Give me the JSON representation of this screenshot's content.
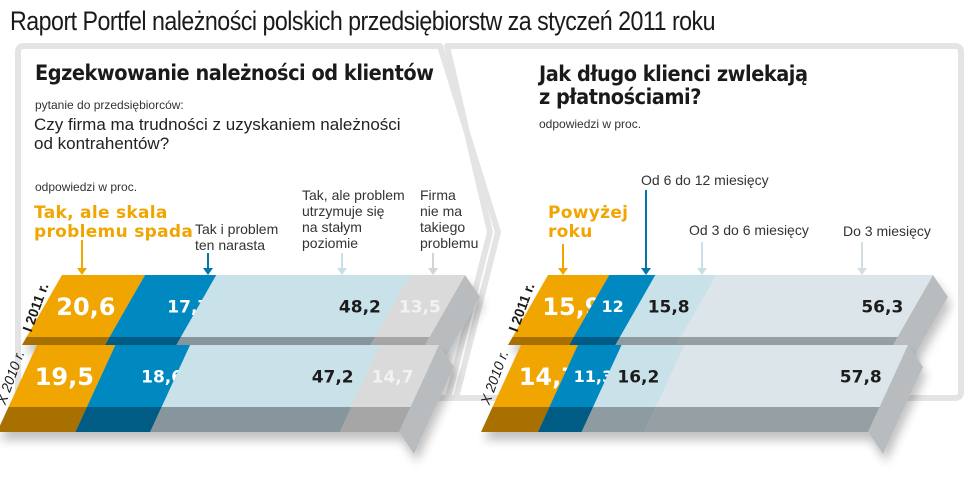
{
  "title": "Raport Portfel należności polskich przedsiębiorstw za styczeń 2011 roku",
  "left_panel": {
    "title": "Egzekwowanie należności od klientów",
    "question_intro": "pytanie do przedsiębiorców:",
    "question_line1": "Czy firma ma trudności z uzyskaniem należności",
    "question_line2": "od kontrahentów?",
    "unit": "odpowiedzi w proc.",
    "categories": [
      {
        "lines": [
          "Tak, ale skala",
          "problemu spada"
        ],
        "color": "#f0a500"
      },
      {
        "lines": [
          "Tak i problem",
          "ten narasta"
        ],
        "color": "#0088c0"
      },
      {
        "lines": [
          "Tak, ale problem",
          "utrzymuje się",
          "na stałym",
          "poziomie"
        ],
        "color": "#c8e0e8"
      },
      {
        "lines": [
          "Firma",
          "nie ma",
          "takiego",
          "problemu"
        ],
        "color": "#d8d8d8"
      }
    ],
    "rows": [
      {
        "label": "I 2011 r.",
        "values": [
          "20,6",
          "17,7",
          "48,2",
          "13,5"
        ]
      },
      {
        "label": "X 2010 r.",
        "values": [
          "19,5",
          "18,6",
          "47,2",
          "14,7"
        ]
      }
    ]
  },
  "right_panel": {
    "title_line1": "Jak długo klienci zwlekają",
    "title_line2": "z płatnościami?",
    "unit": "odpowiedzi w proc.",
    "categories": [
      {
        "lines": [
          "Powyżej",
          "roku"
        ],
        "color": "#f0a500"
      },
      {
        "lines": [
          "Od 6 do 12 miesięcy"
        ],
        "color": "#0088c0"
      },
      {
        "lines": [
          "Od 3 do 6 miesięcy"
        ],
        "color": "#c8e0e8"
      },
      {
        "lines": [
          "Do 3 miesięcy"
        ],
        "color": "#dde6ea"
      }
    ],
    "rows": [
      {
        "label": "I 2011 r.",
        "values": [
          "15,9",
          "12",
          "15,8",
          "56,3"
        ]
      },
      {
        "label": "X 2010 r.",
        "values": [
          "14,7",
          "11,3",
          "16,2",
          "57,8"
        ]
      }
    ]
  },
  "colors": {
    "orange": "#f0a500",
    "blue": "#0088c0",
    "light_blue": "#c8e0e8",
    "light_gray": "#d8d8d8",
    "pale": "#dde6ea",
    "frame": "#e6e6e6"
  },
  "chart_data": [
    {
      "type": "bar",
      "orientation": "horizontal-stacked",
      "title": "Egzekwowanie należności od klientów",
      "subtitle": "Czy firma ma trudności z uzyskaniem należności od kontrahentów? (odpowiedzi w proc.)",
      "categories": [
        "I 2011 r.",
        "X 2010 r."
      ],
      "series": [
        {
          "name": "Tak, ale skala problemu spada",
          "values": [
            20.6,
            19.5
          ]
        },
        {
          "name": "Tak i problem ten narasta",
          "values": [
            17.7,
            18.6
          ]
        },
        {
          "name": "Tak, ale problem utrzymuje się na stałym poziomie",
          "values": [
            48.2,
            47.2
          ]
        },
        {
          "name": "Firma nie ma takiego problemu",
          "values": [
            13.5,
            14.7
          ]
        }
      ],
      "xlabel": "",
      "ylabel": "",
      "grid": false,
      "legend_position": "top"
    },
    {
      "type": "bar",
      "orientation": "horizontal-stacked",
      "title": "Jak długo klienci zwlekają z płatnościami?",
      "subtitle": "odpowiedzi w proc.",
      "categories": [
        "I 2011 r.",
        "X 2010 r."
      ],
      "series": [
        {
          "name": "Powyżej roku",
          "values": [
            15.9,
            14.7
          ]
        },
        {
          "name": "Od 6 do 12 miesięcy",
          "values": [
            12,
            11.3
          ]
        },
        {
          "name": "Od 3 do 6 miesięcy",
          "values": [
            15.8,
            16.2
          ]
        },
        {
          "name": "Do 3 miesięcy",
          "values": [
            56.3,
            57.8
          ]
        }
      ],
      "xlabel": "",
      "ylabel": "",
      "grid": false,
      "legend_position": "top"
    }
  ]
}
